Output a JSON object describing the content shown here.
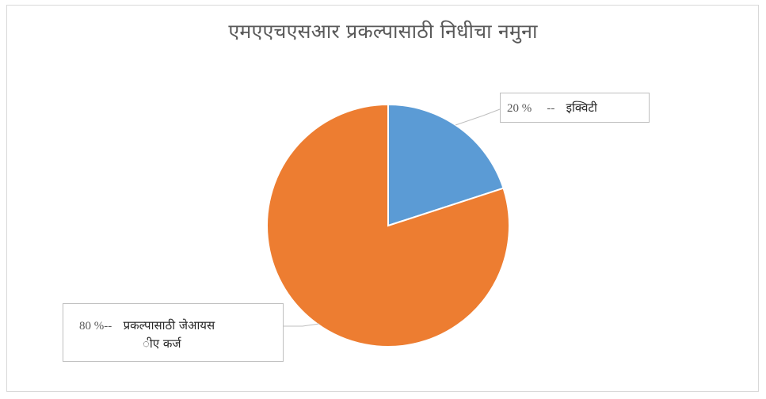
{
  "chart_data": {
    "type": "pie",
    "title": "एमएएचएसआर  प्रकल्पासाठी निधीचा नमुना",
    "slices": [
      {
        "value_pct": "20 %",
        "separator": "--",
        "label": "इक्विटी",
        "value": 20,
        "color": "#5b9bd5"
      },
      {
        "value_pct": "80 %",
        "separator": "--",
        "label": "प्रकल्पासाठी जेआयस",
        "label_line2": "ीए कर्ज",
        "value": 80,
        "color": "#ed7d31"
      }
    ],
    "start_angle_deg": 0,
    "direction": "clockwise",
    "legend": "none",
    "data_labels": "callouts"
  }
}
